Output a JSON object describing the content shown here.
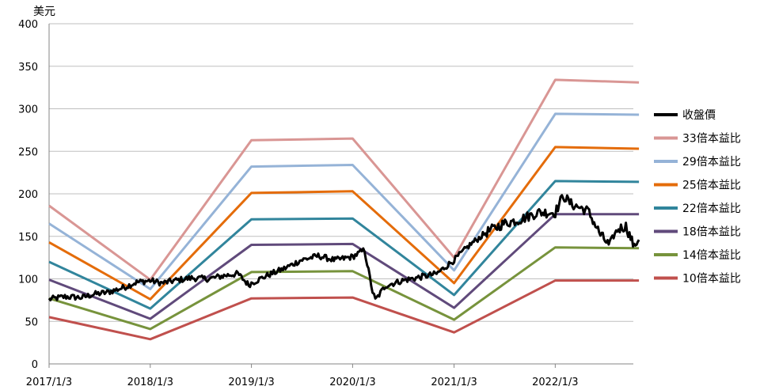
{
  "chart_data": {
    "type": "line",
    "ylabel": "美元",
    "ylim": [
      0,
      400
    ],
    "yticks": [
      0,
      50,
      100,
      150,
      200,
      250,
      300,
      350,
      400
    ],
    "xticks": [
      "2017/1/3",
      "2018/1/3",
      "2019/1/3",
      "2020/1/3",
      "2021/1/3",
      "2022/1/3"
    ],
    "x_end": "2022/11/1",
    "grid": "horizontal",
    "legend_position": "right",
    "series": [
      {
        "name": "收盤價",
        "color": "#000000",
        "width": 3,
        "points": [
          [
            "2017/1/3",
            76
          ],
          [
            "2017/3/1",
            79
          ],
          [
            "2017/5/1",
            78
          ],
          [
            "2017/6/15",
            82
          ],
          [
            "2017/8/1",
            84
          ],
          [
            "2017/10/1",
            90
          ],
          [
            "2017/11/15",
            96
          ],
          [
            "2018/1/3",
            98
          ],
          [
            "2018/2/15",
            95
          ],
          [
            "2018/4/1",
            98
          ],
          [
            "2018/6/1",
            101
          ],
          [
            "2018/8/1",
            100
          ],
          [
            "2018/10/1",
            104
          ],
          [
            "2018/11/15",
            106
          ],
          [
            "2018/12/24",
            93
          ],
          [
            "2019/1/3",
            95
          ],
          [
            "2019/3/1",
            104
          ],
          [
            "2019/5/1",
            112
          ],
          [
            "2019/7/1",
            122
          ],
          [
            "2019/9/1",
            127
          ],
          [
            "2019/11/1",
            122
          ],
          [
            "2020/1/3",
            126
          ],
          [
            "2020/2/15",
            134
          ],
          [
            "2020/3/15",
            85
          ],
          [
            "2020/3/25",
            75
          ],
          [
            "2020/5/1",
            92
          ],
          [
            "2020/7/1",
            98
          ],
          [
            "2020/9/1",
            102
          ],
          [
            "2020/11/1",
            106
          ],
          [
            "2021/1/3",
            122
          ],
          [
            "2021/3/1",
            140
          ],
          [
            "2021/5/1",
            155
          ],
          [
            "2021/7/1",
            165
          ],
          [
            "2021/9/1",
            170
          ],
          [
            "2021/11/1",
            178
          ],
          [
            "2022/1/3",
            178
          ],
          [
            "2022/2/1",
            198
          ],
          [
            "2022/3/1",
            188
          ],
          [
            "2022/5/1",
            180
          ],
          [
            "2022/6/15",
            152
          ],
          [
            "2022/7/15",
            140
          ],
          [
            "2022/8/15",
            158
          ],
          [
            "2022/9/15",
            162
          ],
          [
            "2022/10/15",
            138
          ],
          [
            "2022/11/1",
            146
          ]
        ]
      },
      {
        "name": "33倍本益比",
        "color": "#d99694",
        "width": 3,
        "points": [
          [
            "2017/1/3",
            186
          ],
          [
            "2018/1/3",
            99
          ],
          [
            "2019/1/3",
            263
          ],
          [
            "2020/1/3",
            265
          ],
          [
            "2021/1/3",
            125
          ],
          [
            "2022/1/3",
            334
          ],
          [
            "2022/11/1",
            331
          ]
        ]
      },
      {
        "name": "29倍本益比",
        "color": "#95b3d7",
        "width": 3,
        "points": [
          [
            "2017/1/3",
            165
          ],
          [
            "2018/1/3",
            88
          ],
          [
            "2019/1/3",
            232
          ],
          [
            "2020/1/3",
            234
          ],
          [
            "2021/1/3",
            110
          ],
          [
            "2022/1/3",
            294
          ],
          [
            "2022/11/1",
            293
          ]
        ]
      },
      {
        "name": "25倍本益比",
        "color": "#e46c0a",
        "width": 3,
        "points": [
          [
            "2017/1/3",
            143
          ],
          [
            "2018/1/3",
            76
          ],
          [
            "2019/1/3",
            201
          ],
          [
            "2020/1/3",
            203
          ],
          [
            "2021/1/3",
            95
          ],
          [
            "2022/1/3",
            255
          ],
          [
            "2022/11/1",
            253
          ]
        ]
      },
      {
        "name": "22倍本益比",
        "color": "#31859c",
        "width": 3,
        "points": [
          [
            "2017/1/3",
            120
          ],
          [
            "2018/1/3",
            65
          ],
          [
            "2019/1/3",
            170
          ],
          [
            "2020/1/3",
            171
          ],
          [
            "2021/1/3",
            81
          ],
          [
            "2022/1/3",
            215
          ],
          [
            "2022/11/1",
            214
          ]
        ]
      },
      {
        "name": "18倍本益比",
        "color": "#604a7b",
        "width": 3,
        "points": [
          [
            "2017/1/3",
            99
          ],
          [
            "2018/1/3",
            53
          ],
          [
            "2019/1/3",
            140
          ],
          [
            "2020/1/3",
            141
          ],
          [
            "2021/1/3",
            66
          ],
          [
            "2022/1/3",
            176
          ],
          [
            "2022/11/1",
            176
          ]
        ]
      },
      {
        "name": "14倍本益比",
        "color": "#77933c",
        "width": 3,
        "points": [
          [
            "2017/1/3",
            77
          ],
          [
            "2018/1/3",
            41
          ],
          [
            "2019/1/3",
            108
          ],
          [
            "2020/1/3",
            109
          ],
          [
            "2021/1/3",
            52
          ],
          [
            "2022/1/3",
            137
          ],
          [
            "2022/11/1",
            136
          ]
        ]
      },
      {
        "name": "10倍本益比",
        "color": "#c0504d",
        "width": 3,
        "points": [
          [
            "2017/1/3",
            55
          ],
          [
            "2018/1/3",
            29
          ],
          [
            "2019/1/3",
            77
          ],
          [
            "2020/1/3",
            78
          ],
          [
            "2021/1/3",
            37
          ],
          [
            "2022/1/3",
            98
          ],
          [
            "2022/11/1",
            98
          ]
        ]
      }
    ]
  }
}
